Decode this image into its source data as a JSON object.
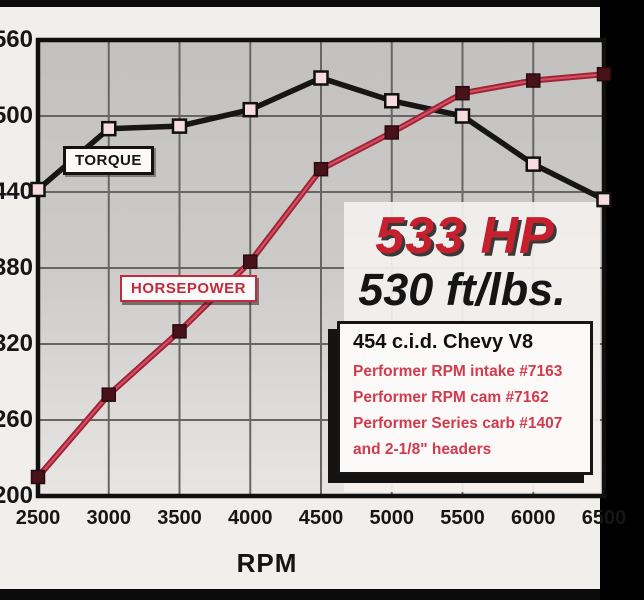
{
  "chart_data": {
    "type": "line",
    "xlabel": "RPM",
    "x": [
      2500,
      3000,
      3500,
      4000,
      4500,
      5000,
      5500,
      6000,
      6500
    ],
    "ylim": [
      200,
      560
    ],
    "yticks": [
      560,
      500,
      440,
      380,
      320,
      260,
      200
    ],
    "grid": true,
    "plot_bg": "#c6c5c3",
    "grid_color": "#676664",
    "series": [
      {
        "name": "TORQUE",
        "values": [
          442,
          490,
          492,
          505,
          530,
          512,
          500,
          462,
          434
        ],
        "line_color": "#161616",
        "marker_fill": "#f7dbe0",
        "marker_stroke": "#101010"
      },
      {
        "name": "HORSEPOWER",
        "values": [
          215,
          280,
          330,
          385,
          458,
          487,
          518,
          528,
          533
        ],
        "line_color": "#a32336",
        "line_highlight": "#dd5a6e",
        "marker_fill": "#47121a",
        "marker_stroke": "#2a0a0e"
      }
    ]
  },
  "callouts": {
    "hp_peak": "533 HP",
    "torque_peak": "530 ft/lbs."
  },
  "series_tags": {
    "torque": "TORQUE",
    "horsepower": "HORSEPOWER"
  },
  "spec_box": {
    "title": "454 c.i.d. Chevy V8",
    "lines": [
      "Performer RPM intake #7163",
      "Performer RPM cam #7162",
      "Performer Series carb #1407",
      "and 2-1/8\" headers"
    ]
  },
  "colors": {
    "accent_red": "#c61f2e",
    "ink_black": "#151515",
    "page_bg": "#f1efec",
    "white_panel": "#f3f1ef"
  }
}
